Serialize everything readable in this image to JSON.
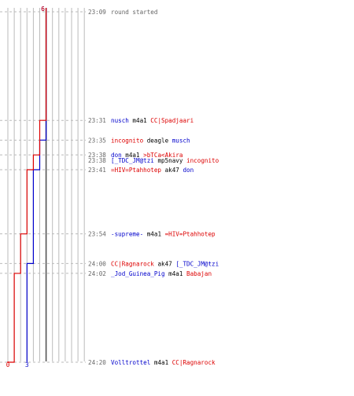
{
  "colors": {
    "team_a": "#0000cc",
    "team_b": "#dd0000",
    "grid": "#bbbbbb",
    "dash": "#bbbbbb",
    "mid": "#555555",
    "text": "#000000",
    "time": "#666666"
  },
  "chart_data": {
    "type": "line",
    "title": "",
    "xlabel": "",
    "ylabel": "",
    "grid": true,
    "axes": {
      "x_range": [
        0,
        12
      ],
      "x_tick_count": 13,
      "center": 6
    },
    "time_range": [
      "23:09",
      "24:20"
    ],
    "series": [
      {
        "key": "team_a",
        "start_label": "6",
        "end_label": "3",
        "points": [
          {
            "time": "23:09",
            "value": 6
          },
          {
            "time": "23:35",
            "value": 5
          },
          {
            "time": "23:41",
            "value": 4
          },
          {
            "time": "24:00",
            "value": 3
          },
          {
            "time": "24:20",
            "value": 3
          }
        ]
      },
      {
        "key": "team_b",
        "start_label": "6",
        "end_label": "0",
        "points": [
          {
            "time": "23:09",
            "value": 6
          },
          {
            "time": "23:31",
            "value": 5
          },
          {
            "time": "23:38",
            "value": 4
          },
          {
            "time": "23:41",
            "value": 3
          },
          {
            "time": "23:54",
            "value": 2
          },
          {
            "time": "24:02",
            "value": 1
          },
          {
            "time": "24:20",
            "value": 0
          }
        ]
      }
    ],
    "events": [
      {
        "time": "23:09",
        "parts": [
          {
            "t": "round started",
            "c": "time"
          }
        ]
      },
      {
        "time": "23:31",
        "parts": [
          {
            "t": "nusch",
            "c": "team_a"
          },
          {
            "t": " m4a1 ",
            "c": "text"
          },
          {
            "t": "CC|Spadjaari",
            "c": "team_b"
          }
        ]
      },
      {
        "time": "23:35",
        "parts": [
          {
            "t": "incognito",
            "c": "team_b"
          },
          {
            "t": " deagle ",
            "c": "text"
          },
          {
            "t": "musch",
            "c": "team_a"
          }
        ]
      },
      {
        "time": "23:38",
        "parts": [
          {
            "t": "don",
            "c": "team_a"
          },
          {
            "t": " m4a1 ",
            "c": "text"
          },
          {
            "t": ">bTCa<Akira",
            "c": "team_b"
          }
        ]
      },
      {
        "time": "23:38",
        "parts": [
          {
            "t": "[_TDC_JM@tzi",
            "c": "team_a"
          },
          {
            "t": " mp5navy ",
            "c": "text"
          },
          {
            "t": "incognito",
            "c": "team_b"
          }
        ]
      },
      {
        "time": "23:41",
        "parts": [
          {
            "t": "=HIV=Ptahhotep",
            "c": "team_b"
          },
          {
            "t": " ak47 ",
            "c": "text"
          },
          {
            "t": "don",
            "c": "team_a"
          }
        ]
      },
      {
        "time": "23:54",
        "parts": [
          {
            "t": "-supreme-",
            "c": "team_a"
          },
          {
            "t": " m4a1 ",
            "c": "text"
          },
          {
            "t": "=HIV=Ptahhotep",
            "c": "team_b"
          }
        ]
      },
      {
        "time": "24:00",
        "parts": [
          {
            "t": "CC|Ragnarock",
            "c": "team_b"
          },
          {
            "t": " ak47 ",
            "c": "text"
          },
          {
            "t": "[_TDC_JM@tzi",
            "c": "team_a"
          }
        ]
      },
      {
        "time": "24:02",
        "parts": [
          {
            "t": "_Jod_Guinea_Pig",
            "c": "team_a"
          },
          {
            "t": " m4a1 ",
            "c": "text"
          },
          {
            "t": "Babajan",
            "c": "team_b"
          }
        ]
      },
      {
        "time": "24:20",
        "parts": [
          {
            "t": "Volltrottel",
            "c": "team_a"
          },
          {
            "t": " m4a1 ",
            "c": "text"
          },
          {
            "t": "CC|Ragnarock",
            "c": "team_b"
          }
        ]
      }
    ]
  }
}
